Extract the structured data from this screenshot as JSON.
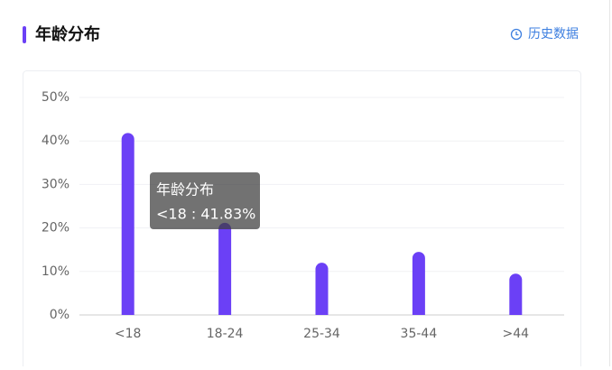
{
  "chart_data": {
    "type": "bar",
    "title": "年龄分布",
    "link": "历史数据",
    "categories": [
      "<18",
      "18-24",
      "25-34",
      "35-44",
      ">44"
    ],
    "values": [
      41.83,
      21.2,
      12,
      14.5,
      9.5
    ],
    "color": "#6b40f6",
    "ylim": [
      0,
      50
    ],
    "yticks": [
      {
        "value": 0,
        "label": "0%"
      },
      {
        "value": 10,
        "label": "10%"
      },
      {
        "value": 20,
        "label": "20%"
      },
      {
        "value": 30,
        "label": "30%"
      },
      {
        "value": 40,
        "label": "40%"
      },
      {
        "value": 50,
        "label": "50%"
      }
    ],
    "grid": true,
    "tooltip": {
      "title": "年龄分布",
      "text": "<18 : 41.83%"
    }
  }
}
